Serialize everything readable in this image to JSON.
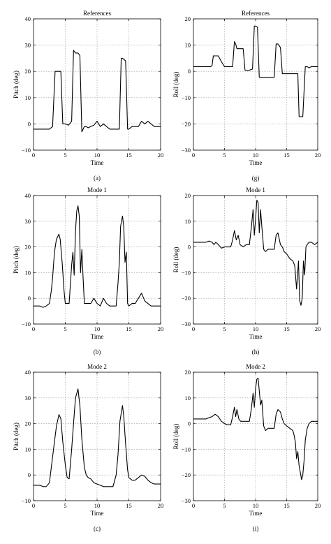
{
  "chart_data": [
    {
      "type": "line",
      "panel": "(a)",
      "title": "References",
      "xlabel": "Time",
      "ylabel": "Pitch (deg)",
      "xlim": [
        0,
        20
      ],
      "ylim": [
        -10,
        40
      ],
      "xticks": [
        "0",
        "5",
        "10",
        "15",
        "20"
      ],
      "yticks": [
        "−10",
        "0",
        "10",
        "20",
        "30",
        "40"
      ],
      "x": [
        0,
        0.5,
        1,
        1.5,
        2,
        2.5,
        3,
        3.4,
        3.7,
        4,
        4.3,
        4.6,
        5,
        5.5,
        6,
        6.3,
        6.6,
        7,
        7.3,
        7.6,
        8,
        8.3,
        8.6,
        9,
        9.5,
        10,
        10.5,
        11,
        11.5,
        12,
        12.5,
        13,
        13.5,
        13.8,
        14,
        14.5,
        14.8,
        15,
        15.5,
        16,
        16.5,
        17,
        17.5,
        18,
        18.5,
        19,
        19.5,
        20
      ],
      "y": [
        -2,
        -2,
        -2,
        -2,
        -2,
        -2,
        -1,
        20,
        20,
        20,
        20,
        0,
        0,
        -0.5,
        1,
        28,
        27,
        27,
        26,
        -3,
        -1,
        -1,
        -1.5,
        -1,
        -0.5,
        1,
        -1,
        0,
        -1,
        -2,
        -2,
        -2,
        -2,
        25,
        25,
        24,
        -2,
        -2,
        -1,
        -1,
        -1,
        1,
        0,
        1,
        0,
        -1,
        -1,
        -1
      ]
    },
    {
      "type": "line",
      "panel": "(g)",
      "title": "References",
      "xlabel": "Time",
      "ylabel": "Roll (deg)",
      "xlim": [
        0,
        20
      ],
      "ylim": [
        -35,
        20
      ],
      "xticks": [
        "0",
        "5",
        "10",
        "15",
        "20"
      ],
      "yticks": [
        "−30",
        "−20",
        "−10",
        "0",
        "10",
        "20"
      ],
      "x": [
        0,
        1,
        2,
        2.8,
        3,
        3.2,
        3.5,
        4,
        4.5,
        5,
        5.5,
        6,
        6.3,
        6.6,
        6.8,
        7,
        7.5,
        8,
        8.3,
        8.6,
        9,
        9.5,
        9.8,
        10,
        10.3,
        10.6,
        11,
        11.5,
        12,
        12.5,
        13,
        13.3,
        13.6,
        14,
        14.3,
        14.6,
        15,
        15.5,
        16,
        16.5,
        16.8,
        17,
        17.3,
        17.6,
        18,
        18.3,
        18.6,
        19,
        19.5,
        20
      ],
      "y": [
        0,
        0,
        0,
        0,
        0.5,
        4.5,
        4.5,
        4.5,
        2,
        0,
        0,
        0,
        0,
        10.5,
        9.5,
        7.5,
        7.5,
        7.5,
        -1.5,
        -1.5,
        -1.5,
        -1,
        17,
        17,
        16.5,
        -4.5,
        -4.5,
        -4.5,
        -4.5,
        -4.5,
        -4.5,
        9.5,
        9.5,
        8,
        -3,
        -3,
        -3,
        -3,
        -3,
        -3,
        -3,
        -21,
        -21,
        -21,
        0,
        0,
        -0.5,
        0,
        0,
        0
      ]
    },
    {
      "type": "line",
      "panel": "(b)",
      "title": "Mode 1",
      "xlabel": "Time",
      "ylabel": "Pitch (deg)",
      "xlim": [
        0,
        20
      ],
      "ylim": [
        -10,
        40
      ],
      "xticks": [
        "0",
        "5",
        "10",
        "15",
        "20"
      ],
      "yticks": [
        "−10",
        "0",
        "10",
        "20",
        "30",
        "40"
      ],
      "x": [
        0,
        0.5,
        1,
        1.5,
        2,
        2.5,
        2.8,
        3,
        3.3,
        3.6,
        4,
        4.2,
        4.5,
        4.8,
        5,
        5.3,
        5.6,
        6,
        6.2,
        6.4,
        6.6,
        6.8,
        7,
        7.2,
        7.4,
        7.6,
        7.8,
        8,
        8.5,
        9,
        9.5,
        10,
        10.5,
        11,
        11.5,
        12,
        12.5,
        13,
        13.3,
        13.5,
        13.7,
        14,
        14.2,
        14.4,
        14.6,
        14.8,
        15,
        15.5,
        16,
        16.5,
        17,
        17.5,
        18,
        18.5,
        19,
        19.5,
        20
      ],
      "y": [
        -3,
        -3,
        -3,
        -3.5,
        -3,
        -2,
        3,
        8,
        18,
        23,
        25,
        23,
        14,
        3,
        -2,
        -2,
        -2,
        13,
        18,
        9,
        26,
        34,
        36,
        32,
        10,
        19,
        8,
        -2,
        -2,
        -2,
        0,
        -2,
        -3,
        0,
        -2,
        -3,
        -3,
        -3,
        6,
        14,
        28,
        32,
        28,
        14,
        18,
        -2,
        -3,
        -2,
        -2,
        0,
        2,
        -1,
        -2,
        -3,
        -3,
        -3,
        -3
      ]
    },
    {
      "type": "line",
      "panel": "(h)",
      "title": "Mode 1",
      "xlabel": "Time",
      "ylabel": "Roll (deg)",
      "xlim": [
        0,
        20
      ],
      "ylim": [
        -35,
        20
      ],
      "xticks": [
        "0",
        "5",
        "10",
        "15",
        "20"
      ],
      "yticks": [
        "−30",
        "−20",
        "−10",
        "0",
        "10",
        "20"
      ],
      "x": [
        0,
        1,
        2,
        2.5,
        3,
        3.3,
        3.6,
        4,
        4.5,
        5,
        5.5,
        6,
        6.3,
        6.6,
        6.9,
        7.2,
        7.5,
        8,
        8.5,
        9,
        9.3,
        9.6,
        9.8,
        10,
        10.2,
        10.4,
        10.6,
        10.8,
        11,
        11.3,
        11.6,
        12,
        12.5,
        13,
        13.3,
        13.6,
        14,
        14.3,
        14.6,
        15,
        15.5,
        16,
        16.3,
        16.6,
        16.9,
        17.1,
        17.3,
        17.5,
        17.7,
        17.9,
        18.1,
        18.3,
        18.6,
        19,
        19.5,
        20
      ],
      "y": [
        0,
        0,
        0,
        0.5,
        0,
        -1,
        0,
        -1,
        -2.5,
        -2,
        -2,
        -2,
        1,
        5,
        1,
        3,
        -1,
        -2,
        -1,
        -1,
        6,
        14,
        3,
        10,
        18,
        17,
        4,
        14,
        7,
        -3,
        -4,
        -3,
        -3,
        -3,
        3,
        4,
        -1,
        -2,
        -4,
        -5,
        -7,
        -8,
        -10,
        -20,
        -8,
        -25,
        -27,
        -24,
        -8,
        -14,
        -2,
        -1,
        0,
        0,
        -1,
        0
      ]
    },
    {
      "type": "line",
      "panel": "(c)",
      "title": "Mode 2",
      "xlabel": "Time",
      "ylabel": "Pitch (deg)",
      "xlim": [
        0,
        20
      ],
      "ylim": [
        -10,
        40
      ],
      "xticks": [
        "0",
        "5",
        "10",
        "15",
        "20"
      ],
      "yticks": [
        "−10",
        "0",
        "10",
        "20",
        "30",
        "40"
      ],
      "x": [
        0,
        0.5,
        1,
        1.5,
        2,
        2.5,
        3,
        3.3,
        3.6,
        4,
        4.3,
        4.6,
        5,
        5.3,
        5.6,
        6,
        6.3,
        6.6,
        7,
        7.3,
        7.6,
        8,
        8.3,
        8.6,
        9,
        9.5,
        10,
        10.5,
        11,
        11.5,
        12,
        12.5,
        13,
        13.3,
        13.6,
        14,
        14.2,
        14.5,
        14.8,
        15,
        15.5,
        16,
        16.5,
        17,
        17.5,
        18,
        18.5,
        19,
        19.5,
        20
      ],
      "y": [
        -4,
        -4,
        -4,
        -4.5,
        -4.5,
        -3,
        7,
        13,
        19,
        23.5,
        22,
        13,
        4,
        -1,
        -1.5,
        10,
        20,
        30,
        33.5,
        27,
        14,
        3,
        0,
        -1,
        -1.5,
        -3,
        -3.5,
        -4,
        -4.5,
        -4.5,
        -4.5,
        -4.5,
        0,
        8,
        21,
        27,
        23,
        12,
        2,
        -1,
        -2,
        -2,
        -1,
        0,
        -0.5,
        -2,
        -3,
        -3.5,
        -3.5,
        -3.5
      ]
    },
    {
      "type": "line",
      "panel": "(i)",
      "title": "Mode 2",
      "xlabel": "Time",
      "ylabel": "Roll (deg)",
      "xlim": [
        0,
        20
      ],
      "ylim": [
        -35,
        20
      ],
      "xticks": [
        "0",
        "5",
        "10",
        "15",
        "20"
      ],
      "yticks": [
        "−30",
        "−20",
        "−10",
        "0",
        "10",
        "20"
      ],
      "x": [
        0,
        1,
        2,
        2.5,
        3,
        3.5,
        4,
        4.5,
        5,
        5.5,
        6,
        6.3,
        6.6,
        6.8,
        7,
        7.3,
        7.6,
        8,
        8.5,
        9,
        9.3,
        9.6,
        9.8,
        10,
        10.2,
        10.4,
        10.6,
        10.8,
        11,
        11.3,
        11.6,
        12,
        12.5,
        13,
        13.3,
        13.6,
        14,
        14.3,
        14.6,
        15,
        15.5,
        16,
        16.2,
        16.4,
        16.6,
        16.8,
        17,
        17.2,
        17.4,
        17.6,
        17.8,
        18,
        18.3,
        18.6,
        19,
        19.5,
        20
      ],
      "y": [
        0,
        0,
        0,
        0.5,
        1,
        2,
        1,
        -1,
        -2,
        -2.5,
        -2.5,
        1,
        5,
        1,
        4,
        0,
        -1,
        -1,
        -1,
        -1,
        4,
        11,
        5,
        13,
        17,
        17.5,
        12,
        6,
        8,
        -3,
        -5,
        -4,
        -4,
        -4,
        2,
        4,
        3,
        0,
        -2,
        -3,
        -4,
        -5,
        -7,
        -10,
        -17,
        -14,
        -20,
        -23,
        -26,
        -24,
        -18,
        -9,
        -4,
        -2,
        -1,
        -1,
        -1
      ]
    }
  ]
}
